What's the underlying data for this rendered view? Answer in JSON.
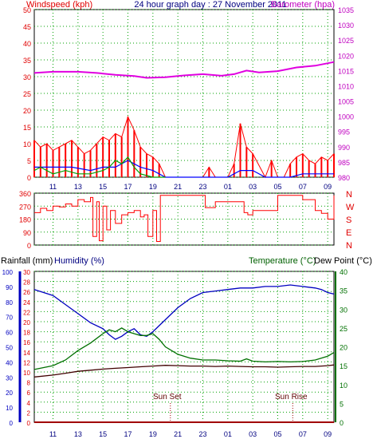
{
  "header": {
    "left": "Windspeed (kph)",
    "center": "24 hour graph day : 27 November 2011",
    "right": "Barometer (hpa)"
  },
  "labels": {
    "rainfall": "Rainfall (mm)",
    "humidity": "Humidity (%)",
    "temperature": "Temperature (°C)",
    "dewpoint": "Dew Point (°C)",
    "sunset": "Sun Set",
    "sunrise": "Sun Rise"
  },
  "x_ticks": [
    "11",
    "13",
    "15",
    "17",
    "19",
    "21",
    "23",
    "01",
    "03",
    "05",
    "07",
    "09"
  ],
  "colors": {
    "wind_axis": "#e00000",
    "baro_axis": "#c000c0",
    "rain_axis": "#e00000",
    "hum_axis": "#0000c0",
    "temp_axis": "#007000",
    "grid": "#00a000",
    "frame": "#000000",
    "title": "#000080"
  },
  "chart_data": [
    {
      "type": "line",
      "title": "24 hour graph day : 27 November 2011",
      "xlabel": "",
      "x_range_hours": [
        9.5,
        33.5
      ],
      "y_left": {
        "label": "Windspeed (kph)",
        "range": [
          0,
          50
        ],
        "ticks": [
          0,
          5,
          10,
          15,
          20,
          25,
          30,
          35,
          40,
          45,
          50
        ]
      },
      "y_right": {
        "label": "Barometer (hpa)",
        "range": [
          980,
          1035
        ],
        "ticks": [
          980,
          985,
          990,
          995,
          1000,
          1005,
          1010,
          1015,
          1020,
          1025,
          1030,
          1035
        ]
      },
      "series": [
        {
          "name": "",
          "axis": "right",
          "color": "#e000e0",
          "x": [
            9.5,
            11,
            13,
            14.5,
            16,
            17.5,
            18.5,
            20,
            21.5,
            23,
            24.5,
            25.5,
            26.5,
            27.5,
            29,
            30.5,
            32,
            33.5
          ],
          "y": [
            1014.2,
            1014.6,
            1014.6,
            1014.2,
            1013.6,
            1013.2,
            1012.6,
            1012.8,
            1013.4,
            1013.8,
            1013.3,
            1013.8,
            1015,
            1014.4,
            1014.8,
            1016,
            1016.6,
            1017.8
          ]
        },
        {
          "name": "",
          "axis": "left",
          "color": "#ff0000",
          "style": "gust-spikes",
          "x": [
            9.5,
            10,
            10.5,
            11,
            11.5,
            12,
            12.5,
            13,
            13.5,
            14,
            14.5,
            15,
            15.5,
            16,
            16.5,
            17,
            17.5,
            18,
            18.5,
            19,
            19.5,
            20,
            21,
            22,
            23,
            23.5,
            24,
            25,
            25.5,
            26,
            26.5,
            27,
            28,
            28.5,
            29,
            29.5,
            30,
            30.5,
            31,
            31.5,
            32,
            32.5,
            33,
            33.5
          ],
          "y": [
            11,
            9,
            10,
            8,
            9,
            10,
            11,
            9,
            7,
            8,
            10,
            12,
            11,
            13,
            12,
            18,
            14,
            9,
            7,
            6,
            4,
            0,
            0,
            0,
            0,
            3,
            0,
            0,
            4,
            16,
            9,
            7,
            0,
            5,
            0,
            0,
            4,
            6,
            7,
            5,
            4,
            6,
            5,
            7
          ]
        },
        {
          "name": "",
          "axis": "left",
          "color": "#0000ff",
          "x": [
            9.5,
            11,
            12.5,
            14,
            15,
            16,
            17,
            17.5,
            18,
            19,
            20,
            21,
            23,
            25,
            26,
            27,
            28,
            30,
            31,
            32,
            33.5
          ],
          "y": [
            3,
            3,
            3,
            2,
            3,
            3,
            5,
            4,
            3,
            2,
            0,
            0,
            0,
            0,
            2,
            2,
            0,
            0,
            1,
            1,
            1
          ]
        },
        {
          "name": "",
          "axis": "left",
          "color": "#00a000",
          "x": [
            9.5,
            10,
            11,
            12,
            13,
            14,
            15,
            15.5,
            16,
            16.5,
            17,
            17.5,
            18,
            19,
            20
          ],
          "y": [
            2,
            3,
            1,
            2,
            1,
            1,
            2,
            3,
            5,
            4,
            6,
            3,
            1,
            0,
            0
          ]
        }
      ]
    },
    {
      "type": "line",
      "title": "",
      "x_range_hours": [
        9.5,
        33.5
      ],
      "y_left": {
        "label": "",
        "range": [
          0,
          360
        ],
        "ticks": [
          0,
          90,
          180,
          270,
          360
        ]
      },
      "y_right_labels": [
        "N",
        "W",
        "S",
        "E",
        "N"
      ],
      "series": [
        {
          "name": "",
          "color": "#ff0000",
          "x": [
            9.5,
            10,
            10.5,
            11,
            11.5,
            12,
            12.5,
            13,
            13.5,
            14,
            14.2,
            14.5,
            14.7,
            15,
            15.3,
            15.6,
            16,
            16.5,
            17,
            17.5,
            18,
            18.3,
            18.6,
            19,
            19.3,
            19.6,
            20,
            21,
            22,
            23,
            23.2,
            24,
            25,
            25.5,
            26,
            26.3,
            26.6,
            27,
            28,
            28.5,
            29,
            29.5,
            30,
            30.5,
            31,
            32,
            32.5,
            33,
            33.5
          ],
          "y": [
            225,
            255,
            240,
            270,
            265,
            285,
            270,
            315,
            300,
            330,
            60,
            300,
            30,
            270,
            105,
            240,
            150,
            210,
            225,
            240,
            195,
            210,
            60,
            240,
            25,
            345,
            345,
            345,
            345,
            345,
            260,
            300,
            300,
            300,
            300,
            225,
            210,
            240,
            240,
            240,
            345,
            345,
            345,
            345,
            315,
            240,
            220,
            180,
            345
          ]
        }
      ]
    },
    {
      "type": "line",
      "title": "",
      "x_range_hours": [
        9.5,
        33.5
      ],
      "y_left_outer": {
        "label": "Rainfall (mm)",
        "range": [
          0,
          30
        ],
        "ticks": [
          0,
          2,
          4,
          6,
          8,
          10,
          12,
          14,
          16,
          18,
          20,
          22,
          24,
          26,
          28,
          30
        ]
      },
      "y_left_inner": {
        "label": "Humidity (%)",
        "range": [
          0,
          100
        ],
        "ticks": [
          0,
          10,
          20,
          30,
          40,
          50,
          60,
          70,
          80,
          90,
          100
        ]
      },
      "y_right": {
        "label": "Temperature (°C)",
        "range": [
          0,
          40
        ],
        "ticks": [
          0,
          5,
          10,
          15,
          20,
          25,
          30,
          35,
          40
        ]
      },
      "series": [
        {
          "name": "",
          "axis": "inner",
          "color": "#0000c0",
          "x": [
            9.5,
            11,
            12,
            13,
            14,
            15,
            15.5,
            16,
            16.5,
            17,
            17.5,
            18,
            18.5,
            19,
            19.5,
            20,
            21,
            22,
            23,
            24,
            25,
            26,
            27,
            28,
            29,
            30,
            31,
            32,
            32.5,
            33,
            33.5
          ],
          "y": [
            88,
            84,
            78,
            72,
            66,
            62,
            58,
            55,
            57,
            60,
            62,
            58,
            57,
            60,
            64,
            68,
            76,
            82,
            86,
            87,
            88,
            89,
            89,
            90,
            90,
            91,
            90,
            89,
            88,
            86,
            85
          ]
        },
        {
          "name": "",
          "axis": "right",
          "color": "#007000",
          "x": [
            9.5,
            11,
            12,
            13,
            14,
            15,
            15.5,
            16,
            16.5,
            17,
            17.5,
            18,
            18.5,
            19,
            19.5,
            20,
            21,
            22,
            23,
            24,
            25,
            26,
            26.5,
            27,
            28,
            29,
            30,
            31,
            32,
            33,
            33.5
          ],
          "y": [
            14,
            15,
            16.5,
            19,
            21,
            23.5,
            24.5,
            24,
            25,
            24,
            23.5,
            23,
            23,
            23.5,
            22,
            20,
            18,
            17,
            16.5,
            16.5,
            16.3,
            16.2,
            16.8,
            16.2,
            16,
            16.1,
            16,
            16.1,
            16.5,
            17.5,
            18.5
          ]
        },
        {
          "name": "",
          "axis": "right",
          "color": "#400000",
          "x": [
            9.5,
            11,
            12,
            13,
            14,
            15,
            16,
            17,
            18,
            19,
            20,
            21,
            22,
            23,
            24,
            25,
            26,
            27,
            28,
            29,
            30,
            31,
            32,
            33,
            33.5
          ],
          "y": [
            12,
            12.5,
            13,
            13.5,
            13.8,
            14.1,
            14.3,
            14.5,
            14.7,
            14.9,
            15.1,
            15,
            14.9,
            14.9,
            14.8,
            14.9,
            14.8,
            14.7,
            14.7,
            14.6,
            14.7,
            14.8,
            14.8,
            15,
            15.2
          ]
        },
        {
          "name": "",
          "axis": "outer",
          "color": "#a00000",
          "x": [
            9.5,
            33.5
          ],
          "y": [
            0,
            0
          ]
        }
      ],
      "markers": [
        {
          "label": "Sun Set",
          "x": 20.4
        },
        {
          "label": "Sun Rise",
          "x": 30.2
        }
      ]
    }
  ]
}
